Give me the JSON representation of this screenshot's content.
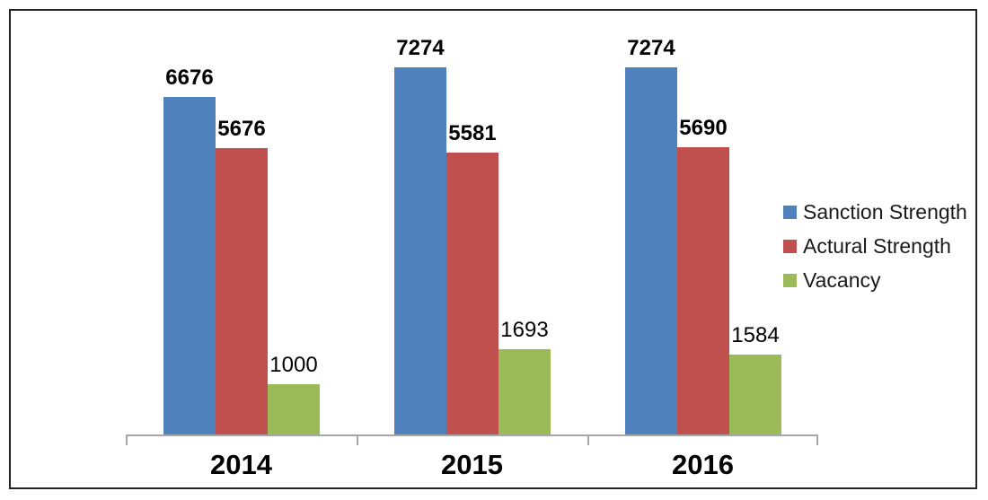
{
  "chart_data": {
    "type": "bar",
    "title": "",
    "xlabel": "",
    "ylabel": "",
    "categories": [
      "2014",
      "2015",
      "2016"
    ],
    "series": [
      {
        "name": "Sanction Strength",
        "values": [
          6676,
          7274,
          7274
        ],
        "color": "#4F81BD",
        "labels_bold": true
      },
      {
        "name": "Actural Strength",
        "values": [
          5676,
          5581,
          5690
        ],
        "color": "#C0504D",
        "labels_bold": true
      },
      {
        "name": "Vacancy",
        "values": [
          1000,
          1693,
          1584
        ],
        "color": "#9BBB59",
        "labels_bold": false
      }
    ],
    "ylim": [
      0,
      8000
    ],
    "grid": false,
    "legend_position": "right",
    "axis_color": "#A6A6A6",
    "data_label_color": "#000000",
    "category_label_color": "#000000",
    "background_color": "#FFFFFF",
    "border_color": "#242424"
  }
}
